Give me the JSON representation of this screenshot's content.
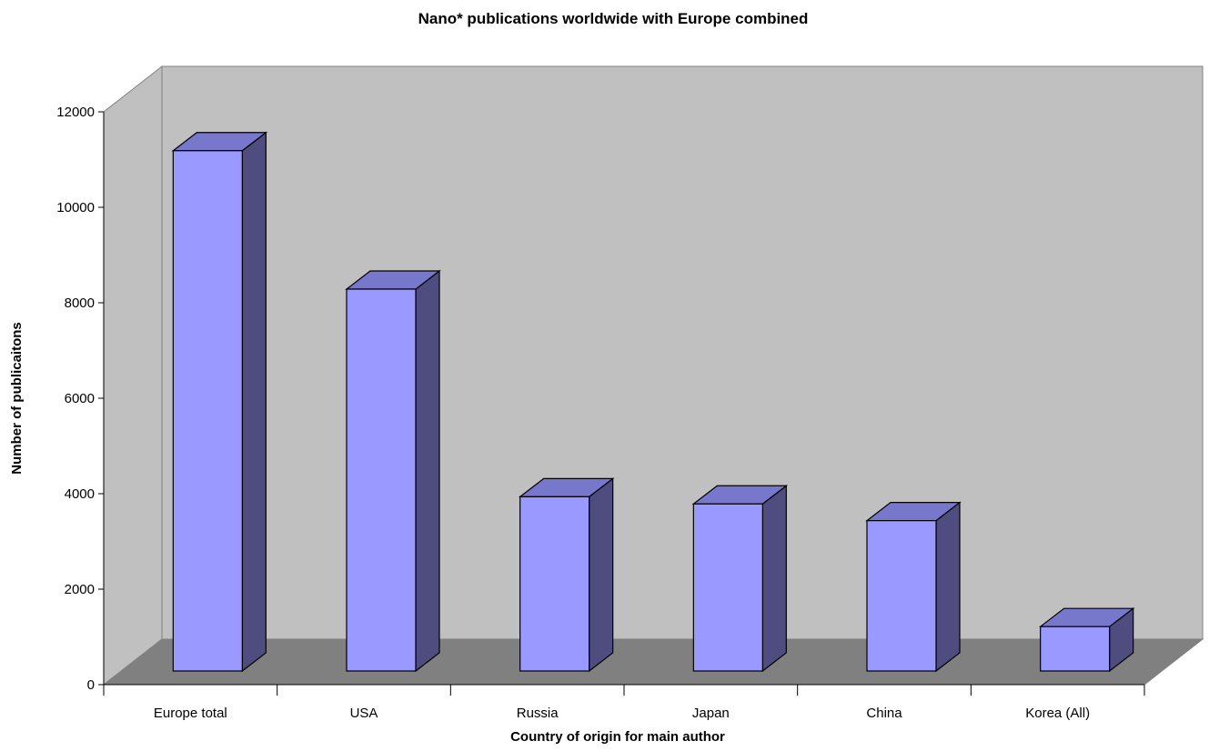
{
  "chart_data": {
    "type": "bar",
    "style": "3d-column",
    "title": "Nano* publications worldwide with Europe combined",
    "xlabel": "Country of origin for main author",
    "ylabel": "Number of publicaitons",
    "categories": [
      "Europe total",
      "USA",
      "Russia",
      "Japan",
      "China",
      "Korea (All)"
    ],
    "values": [
      10900,
      8000,
      3650,
      3500,
      3150,
      930
    ],
    "ylim": [
      0,
      12000
    ],
    "yticks": [
      0,
      2000,
      4000,
      6000,
      8000,
      10000,
      12000
    ],
    "grid": false,
    "legend": "none",
    "colors": {
      "bar_front": "#9999ff",
      "bar_top": "#7777cc",
      "bar_side": "#4f4d80",
      "back_wall": "#c0c0c0",
      "side_wall": "#c0c0c0",
      "floor": "#808080",
      "edge": "#000000"
    }
  }
}
